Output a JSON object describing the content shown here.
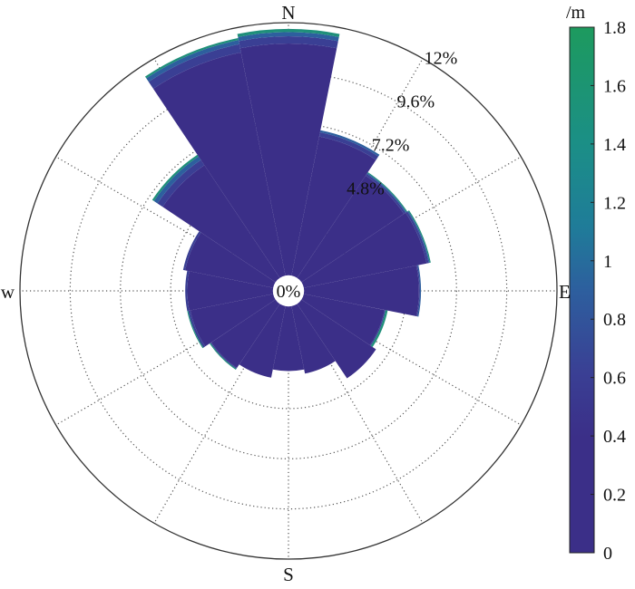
{
  "chart_data": {
    "type": "polar-bar",
    "title": "",
    "directions": {
      "north": "N",
      "east": "E",
      "south": "S",
      "west": "w"
    },
    "radial_unit": "%",
    "radial_max": 12,
    "radial_ticks": [
      {
        "value": 0,
        "label": "0%"
      },
      {
        "value": 2.4,
        "label": ""
      },
      {
        "value": 4.8,
        "label": "4.8%"
      },
      {
        "value": 7.2,
        "label": "7.2%"
      },
      {
        "value": 9.6,
        "label": "9.6%"
      },
      {
        "value": 12,
        "label": "12%"
      }
    ],
    "grid": true,
    "sector_count": 16,
    "sector_centers_deg": [
      0,
      22.5,
      45,
      67.5,
      90,
      112.5,
      135,
      157.5,
      180,
      202.5,
      225,
      247.5,
      270,
      292.5,
      315,
      337.5
    ],
    "frequency_percent": [
      11.7,
      7.0,
      6.0,
      6.1,
      5.5,
      4.0,
      4.2,
      3.2,
      3.0,
      3.4,
      3.7,
      4.1,
      4.1,
      4.3,
      7.0,
      11.5
    ],
    "stacks": [
      [
        {
          "upper": 0.4,
          "percent": 11.0
        },
        {
          "upper": 0.6,
          "percent": 0.35
        },
        {
          "upper": 0.8,
          "percent": 0.2
        },
        {
          "upper": 1.8,
          "percent": 0.15
        }
      ],
      [
        {
          "upper": 0.4,
          "percent": 6.7
        },
        {
          "upper": 0.6,
          "percent": 0.2
        },
        {
          "upper": 0.8,
          "percent": 0.1
        }
      ],
      [
        {
          "upper": 0.4,
          "percent": 5.8
        },
        {
          "upper": 0.6,
          "percent": 0.1
        },
        {
          "upper": 0.8,
          "percent": 0.05
        },
        {
          "upper": 1.8,
          "percent": 0.05
        }
      ],
      [
        {
          "upper": 0.4,
          "percent": 5.9
        },
        {
          "upper": 0.6,
          "percent": 0.1
        },
        {
          "upper": 0.8,
          "percent": 0.05
        },
        {
          "upper": 1.8,
          "percent": 0.05
        }
      ],
      [
        {
          "upper": 0.4,
          "percent": 5.4
        },
        {
          "upper": 0.6,
          "percent": 0.05
        },
        {
          "upper": 0.8,
          "percent": 0.05
        }
      ],
      [
        {
          "upper": 0.4,
          "percent": 3.85
        },
        {
          "upper": 0.6,
          "percent": 0.05
        },
        {
          "upper": 1.8,
          "percent": 0.1
        }
      ],
      [
        {
          "upper": 0.4,
          "percent": 4.2
        }
      ],
      [
        {
          "upper": 0.4,
          "percent": 3.2
        }
      ],
      [
        {
          "upper": 0.4,
          "percent": 3.0
        }
      ],
      [
        {
          "upper": 0.4,
          "percent": 3.4
        }
      ],
      [
        {
          "upper": 0.4,
          "percent": 3.6
        },
        {
          "upper": 0.6,
          "percent": 0.05
        },
        {
          "upper": 1.8,
          "percent": 0.05
        }
      ],
      [
        {
          "upper": 0.4,
          "percent": 3.95
        },
        {
          "upper": 0.6,
          "percent": 0.1
        },
        {
          "upper": 1.8,
          "percent": 0.05
        }
      ],
      [
        {
          "upper": 0.4,
          "percent": 4.0
        },
        {
          "upper": 0.6,
          "percent": 0.1
        }
      ],
      [
        {
          "upper": 0.4,
          "percent": 4.2
        },
        {
          "upper": 0.6,
          "percent": 0.1
        }
      ],
      [
        {
          "upper": 0.4,
          "percent": 6.4
        },
        {
          "upper": 0.6,
          "percent": 0.3
        },
        {
          "upper": 0.8,
          "percent": 0.2
        },
        {
          "upper": 1.8,
          "percent": 0.1
        }
      ],
      [
        {
          "upper": 0.4,
          "percent": 10.8
        },
        {
          "upper": 0.6,
          "percent": 0.4
        },
        {
          "upper": 0.8,
          "percent": 0.2
        },
        {
          "upper": 1.8,
          "percent": 0.1
        }
      ]
    ],
    "colorbar": {
      "unit": "/m",
      "min": 0,
      "max": 1.8,
      "ticks": [
        "0",
        "0.2",
        "0.4",
        "0.6",
        "0.8",
        "1",
        "1.2",
        "1.4",
        "1.6",
        "1.8"
      ],
      "bands": [
        {
          "upper": 0.4,
          "color": "#3b2f88"
        },
        {
          "upper": 0.6,
          "color": "#3a3f94"
        },
        {
          "upper": 0.8,
          "color": "#2d5f9e"
        },
        {
          "upper": 1.8,
          "color": "#1f8f7a"
        }
      ]
    }
  }
}
